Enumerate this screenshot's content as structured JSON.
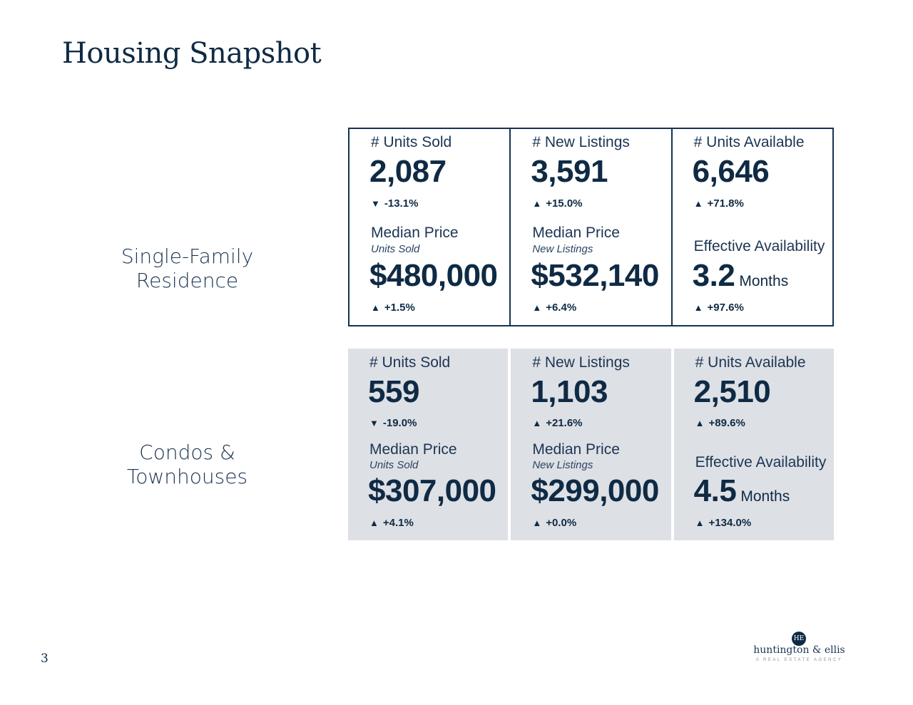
{
  "title": "Housing Snapshot",
  "page_number": "3",
  "rows": [
    {
      "label_line1": "Single-Family",
      "label_line2": "Residence",
      "units_sold": {
        "label": "# Units Sold",
        "value": "2,087",
        "change": "-13.1%",
        "direction": "down"
      },
      "new_listings": {
        "label": "# New Listings",
        "value": "3,591",
        "change": "+15.0%",
        "direction": "up"
      },
      "units_available": {
        "label": "# Units Available",
        "value": "6,646",
        "change": "+71.8%",
        "direction": "up"
      },
      "median_price_sold": {
        "label": "Median Price",
        "sublabel": "Units Sold",
        "value": "$480,000",
        "change": "+1.5%",
        "direction": "up"
      },
      "median_price_listings": {
        "label": "Median Price",
        "sublabel": "New Listings",
        "value": "$532,140",
        "change": "+6.4%",
        "direction": "up"
      },
      "effective_availability": {
        "label": "Effective Availability",
        "value": "3.2",
        "unit": "Months",
        "change": "+97.6%",
        "direction": "up"
      }
    },
    {
      "label_line1": "Condos &",
      "label_line2": "Townhouses",
      "units_sold": {
        "label": "# Units Sold",
        "value": "559",
        "change": "-19.0%",
        "direction": "down"
      },
      "new_listings": {
        "label": "# New Listings",
        "value": "1,103",
        "change": "+21.6%",
        "direction": "up"
      },
      "units_available": {
        "label": "# Units Available",
        "value": "2,510",
        "change": "+89.6%",
        "direction": "up"
      },
      "median_price_sold": {
        "label": "Median Price",
        "sublabel": "Units Sold",
        "value": "$307,000",
        "change": "+4.1%",
        "direction": "up"
      },
      "median_price_listings": {
        "label": "Median Price",
        "sublabel": "New Listings",
        "value": "$299,000",
        "change": "+0.0%",
        "direction": "up"
      },
      "effective_availability": {
        "label": "Effective Availability",
        "value": "4.5",
        "unit": "Months",
        "change": "+134.0%",
        "direction": "up"
      }
    }
  ],
  "arrows": {
    "up": "▲",
    "down": "▼"
  },
  "logo": {
    "monogram": "HE",
    "name": "huntington & ellis",
    "tagline": "A REAL ESTATE AGENCY"
  },
  "colors": {
    "navy": "#0f2a44",
    "panel_gray": "#dde0e5"
  }
}
